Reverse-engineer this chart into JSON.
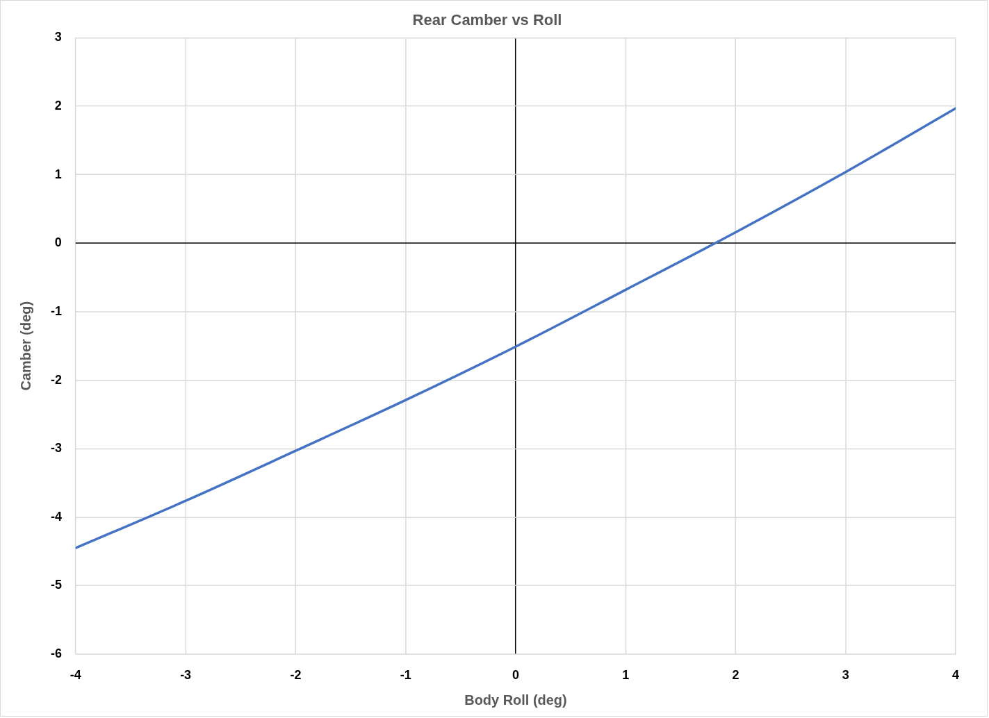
{
  "chart_data": {
    "type": "line",
    "title": "Rear Camber vs Roll",
    "xlabel": "Body Roll (deg)",
    "ylabel": "Camber (deg)",
    "x": [
      -4,
      -3,
      -2,
      -1,
      0,
      1,
      2,
      3,
      4
    ],
    "series": [
      {
        "color": "#4472c4",
        "values": [
          -4.45,
          -3.76,
          -3.03,
          -2.29,
          -1.51,
          -0.68,
          0.16,
          1.04,
          1.97
        ]
      }
    ],
    "xlim": [
      -4,
      4
    ],
    "ylim": [
      -6,
      3
    ],
    "xticks": [
      -4,
      -3,
      -2,
      -1,
      0,
      1,
      2,
      3,
      4
    ],
    "yticks": [
      -6,
      -5,
      -4,
      -3,
      -2,
      -1,
      0,
      1,
      2,
      3
    ],
    "grid": true,
    "line_style": "solid"
  }
}
